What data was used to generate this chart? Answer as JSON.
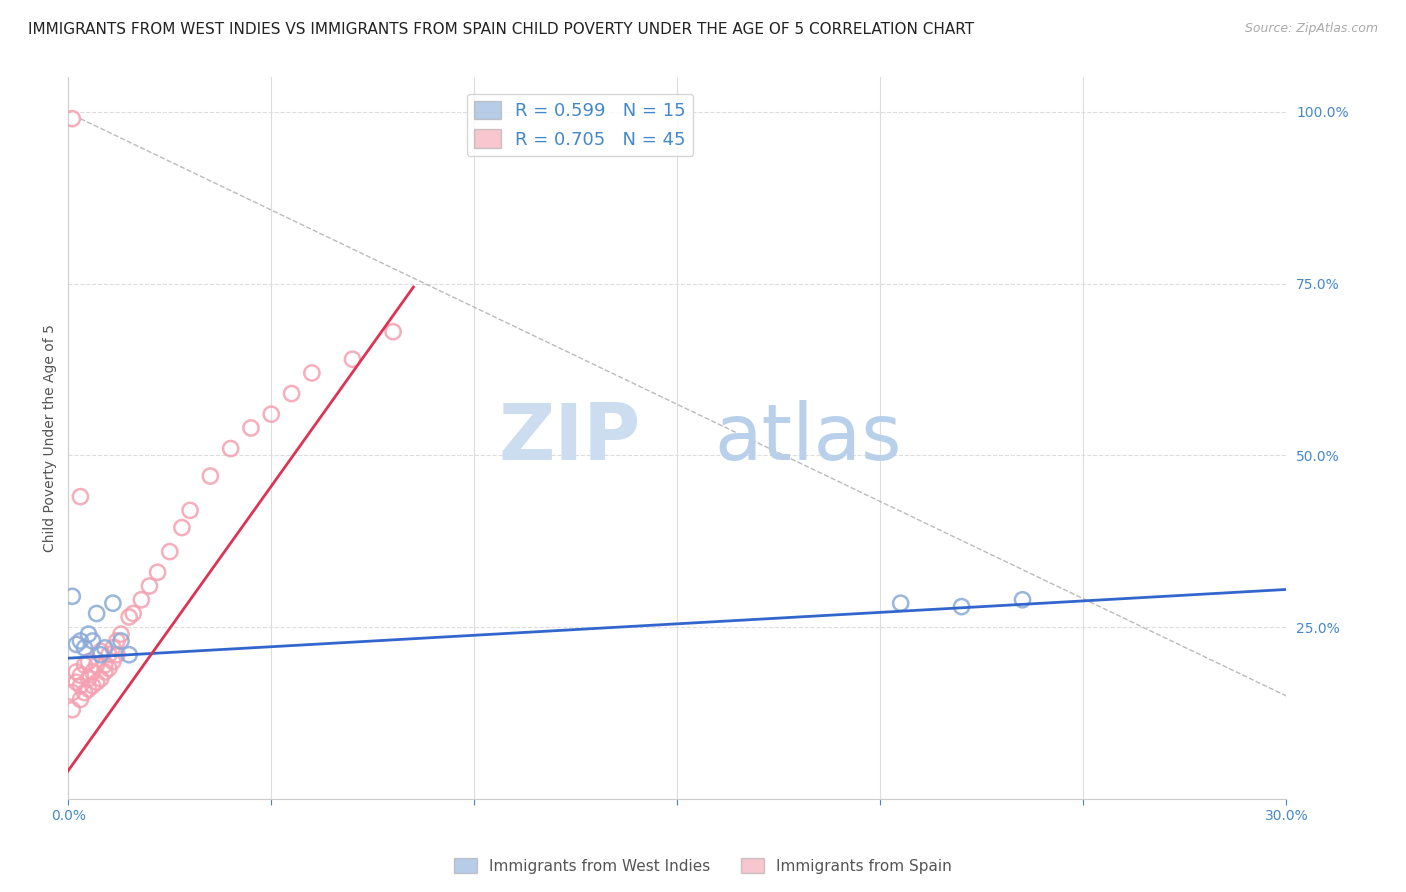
{
  "title": "IMMIGRANTS FROM WEST INDIES VS IMMIGRANTS FROM SPAIN CHILD POVERTY UNDER THE AGE OF 5 CORRELATION CHART",
  "source": "Source: ZipAtlas.com",
  "ylabel": "Child Poverty Under the Age of 5",
  "xlim": [
    0.0,
    0.3
  ],
  "ylim": [
    0.0,
    1.05
  ],
  "xticks": [
    0.0,
    0.05,
    0.1,
    0.15,
    0.2,
    0.25,
    0.3
  ],
  "xticklabels": [
    "0.0%",
    "",
    "",
    "",
    "",
    "",
    "30.0%"
  ],
  "yticks_right": [
    1.0,
    0.75,
    0.5,
    0.25
  ],
  "ytick_right_labels": [
    "100.0%",
    "75.0%",
    "50.0%",
    "25.0%"
  ],
  "blue_color": "#88aad8",
  "pink_color": "#f4a0b0",
  "blue_line_color": "#3366cc",
  "pink_line_color": "#dd3355",
  "axis_color": "#4488cc",
  "legend_R1": "R = 0.599",
  "legend_N1": "N = 15",
  "legend_R2": "R = 0.705",
  "legend_N2": "N = 45",
  "blue_points_x": [
    0.001,
    0.002,
    0.003,
    0.004,
    0.005,
    0.006,
    0.007,
    0.008,
    0.009,
    0.011,
    0.013,
    0.015,
    0.205,
    0.22,
    0.235
  ],
  "blue_points_y": [
    0.295,
    0.225,
    0.23,
    0.22,
    0.24,
    0.23,
    0.27,
    0.21,
    0.22,
    0.285,
    0.23,
    0.21,
    0.285,
    0.28,
    0.29
  ],
  "pink_points_x": [
    0.001,
    0.001,
    0.002,
    0.002,
    0.003,
    0.003,
    0.003,
    0.004,
    0.004,
    0.005,
    0.005,
    0.005,
    0.006,
    0.006,
    0.007,
    0.007,
    0.008,
    0.008,
    0.009,
    0.009,
    0.01,
    0.01,
    0.011,
    0.011,
    0.012,
    0.012,
    0.013,
    0.015,
    0.016,
    0.018,
    0.02,
    0.022,
    0.025,
    0.028,
    0.03,
    0.035,
    0.04,
    0.045,
    0.05,
    0.055,
    0.06,
    0.07,
    0.08,
    0.003,
    0.001
  ],
  "pink_points_y": [
    0.13,
    0.155,
    0.17,
    0.185,
    0.145,
    0.165,
    0.18,
    0.155,
    0.195,
    0.16,
    0.175,
    0.2,
    0.165,
    0.185,
    0.17,
    0.195,
    0.175,
    0.215,
    0.185,
    0.195,
    0.19,
    0.21,
    0.2,
    0.22,
    0.21,
    0.23,
    0.24,
    0.265,
    0.27,
    0.29,
    0.31,
    0.33,
    0.36,
    0.395,
    0.42,
    0.47,
    0.51,
    0.54,
    0.56,
    0.59,
    0.62,
    0.64,
    0.68,
    0.44,
    0.99
  ],
  "blue_trend_x": [
    0.0,
    0.3
  ],
  "blue_trend_y": [
    0.205,
    0.305
  ],
  "pink_trend_x": [
    -0.005,
    0.085
  ],
  "pink_trend_y": [
    0.0,
    0.745
  ],
  "diag_line_x": [
    0.003,
    0.3
  ],
  "diag_line_y": [
    0.99,
    0.15
  ],
  "grid_color": "#dddddd",
  "background_color": "#ffffff",
  "title_fontsize": 11,
  "label_fontsize": 10,
  "tick_fontsize": 10
}
